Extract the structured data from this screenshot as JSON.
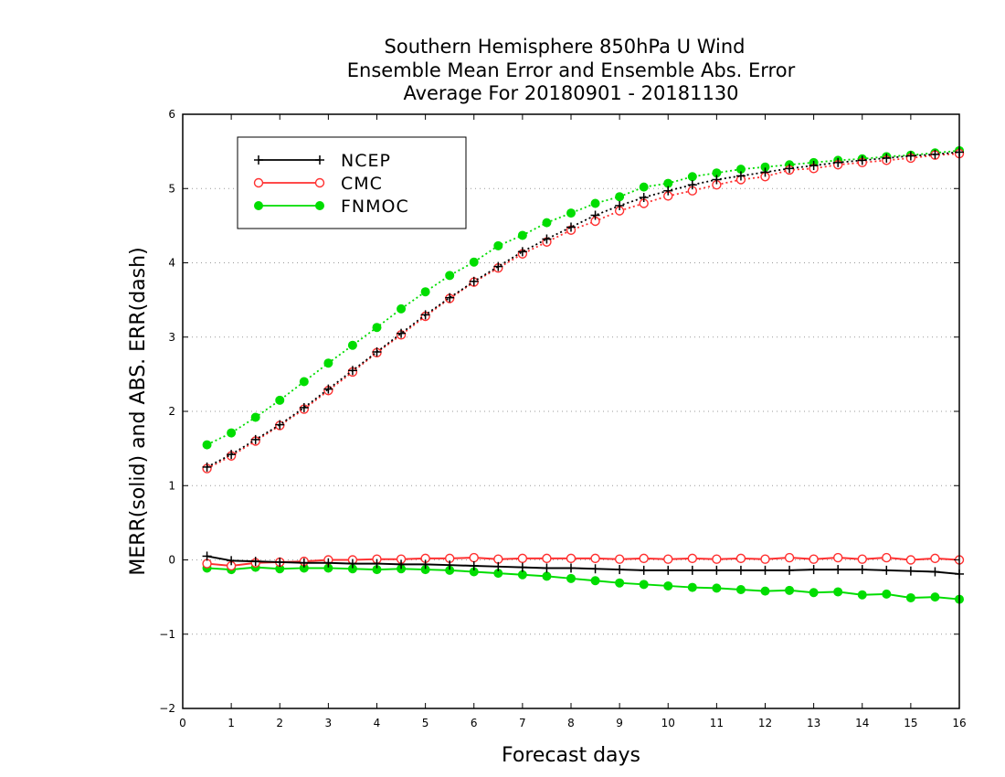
{
  "chart_data": {
    "type": "line",
    "title_lines": [
      "Southern Hemisphere 850hPa U Wind",
      "Ensemble Mean Error and Ensemble Abs. Error",
      "Average For 20180901 - 20181130"
    ],
    "xlabel": "Forecast days",
    "ylabel": "MERR(solid) and ABS. ERR(dash)",
    "xlim": [
      0,
      16
    ],
    "ylim": [
      -2,
      6
    ],
    "x_ticks": [
      "0",
      "1",
      "2",
      "3",
      "4",
      "5",
      "6",
      "7",
      "8",
      "9",
      "10",
      "11",
      "12",
      "13",
      "14",
      "15",
      "16"
    ],
    "y_ticks": [
      "−2",
      "−1",
      "0",
      "1",
      "2",
      "3",
      "4",
      "5",
      "6"
    ],
    "grid": "horizontal dotted",
    "legend_position": "top-left",
    "x": [
      0.5,
      1,
      1.5,
      2,
      2.5,
      3,
      3.5,
      4,
      4.5,
      5,
      5.5,
      6,
      6.5,
      7,
      7.5,
      8,
      8.5,
      9,
      9.5,
      10,
      10.5,
      11,
      11.5,
      12,
      12.5,
      13,
      13.5,
      14,
      14.5,
      15,
      15.5,
      16
    ],
    "series": [
      {
        "name": "NCEP",
        "color": "#000000",
        "marker": "plus",
        "mean_error": [
          0.05,
          -0.01,
          -0.02,
          -0.03,
          -0.04,
          -0.04,
          -0.05,
          -0.05,
          -0.06,
          -0.06,
          -0.07,
          -0.08,
          -0.09,
          -0.1,
          -0.11,
          -0.11,
          -0.12,
          -0.13,
          -0.14,
          -0.14,
          -0.14,
          -0.14,
          -0.14,
          -0.14,
          -0.14,
          -0.13,
          -0.13,
          -0.13,
          -0.14,
          -0.15,
          -0.16,
          -0.19
        ],
        "abs_error": [
          1.25,
          1.42,
          1.62,
          1.82,
          2.05,
          2.3,
          2.55,
          2.8,
          3.05,
          3.3,
          3.53,
          3.75,
          3.95,
          4.15,
          4.32,
          4.48,
          4.64,
          4.77,
          4.88,
          4.97,
          5.05,
          5.12,
          5.17,
          5.22,
          5.27,
          5.31,
          5.35,
          5.38,
          5.41,
          5.44,
          5.46,
          5.49
        ]
      },
      {
        "name": "CMC",
        "color": "#ff3030",
        "marker": "open-circle",
        "mean_error": [
          -0.05,
          -0.08,
          -0.04,
          -0.03,
          -0.02,
          0.0,
          0.0,
          0.01,
          0.01,
          0.02,
          0.02,
          0.03,
          0.01,
          0.02,
          0.02,
          0.02,
          0.02,
          0.01,
          0.02,
          0.01,
          0.02,
          0.01,
          0.02,
          0.01,
          0.03,
          0.01,
          0.03,
          0.01,
          0.03,
          0.0,
          0.02,
          0.0
        ],
        "abs_error": [
          1.23,
          1.4,
          1.6,
          1.81,
          2.03,
          2.28,
          2.53,
          2.79,
          3.03,
          3.28,
          3.52,
          3.74,
          3.93,
          4.12,
          4.28,
          4.44,
          4.56,
          4.7,
          4.8,
          4.9,
          4.97,
          5.05,
          5.12,
          5.16,
          5.25,
          5.27,
          5.32,
          5.35,
          5.38,
          5.41,
          5.45,
          5.47
        ]
      },
      {
        "name": "FNMOC",
        "color": "#00dd00",
        "marker": "filled-circle",
        "mean_error": [
          -0.11,
          -0.13,
          -0.1,
          -0.12,
          -0.11,
          -0.11,
          -0.12,
          -0.13,
          -0.12,
          -0.13,
          -0.14,
          -0.16,
          -0.18,
          -0.2,
          -0.22,
          -0.25,
          -0.28,
          -0.31,
          -0.33,
          -0.35,
          -0.37,
          -0.38,
          -0.4,
          -0.42,
          -0.41,
          -0.44,
          -0.43,
          -0.47,
          -0.46,
          -0.51,
          -0.5,
          -0.53
        ],
        "abs_error": [
          1.55,
          1.71,
          1.92,
          2.15,
          2.4,
          2.65,
          2.89,
          3.13,
          3.38,
          3.61,
          3.83,
          4.01,
          4.23,
          4.37,
          4.54,
          4.67,
          4.8,
          4.89,
          5.02,
          5.07,
          5.16,
          5.21,
          5.26,
          5.29,
          5.32,
          5.35,
          5.38,
          5.4,
          5.43,
          5.45,
          5.48,
          5.51
        ]
      }
    ]
  }
}
